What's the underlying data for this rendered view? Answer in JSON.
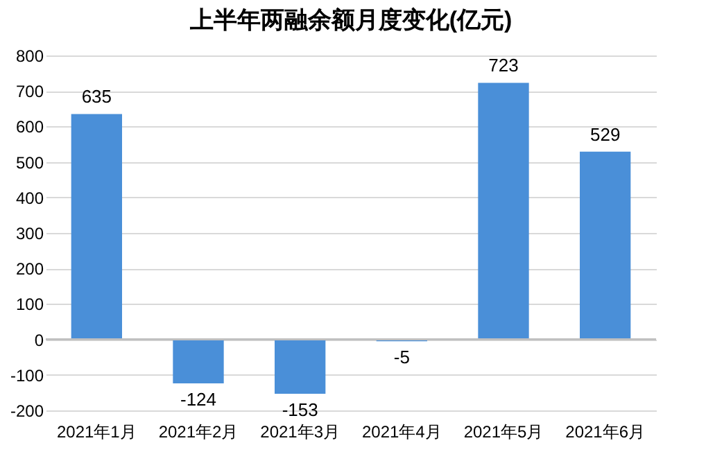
{
  "chart_data": {
    "type": "bar",
    "title": "上半年两融余额月度变化(亿元)",
    "categories": [
      "2021年1月",
      "2021年2月",
      "2021年3月",
      "2021年4月",
      "2021年5月",
      "2021年6月"
    ],
    "values": [
      635,
      -124,
      -153,
      -5,
      723,
      529
    ],
    "color": "#4a8fd8",
    "ylim": [
      -200,
      800
    ],
    "yticks": [
      -200,
      -100,
      0,
      100,
      200,
      300,
      400,
      500,
      600,
      700,
      800
    ],
    "grid": "y",
    "data_labels": true
  }
}
